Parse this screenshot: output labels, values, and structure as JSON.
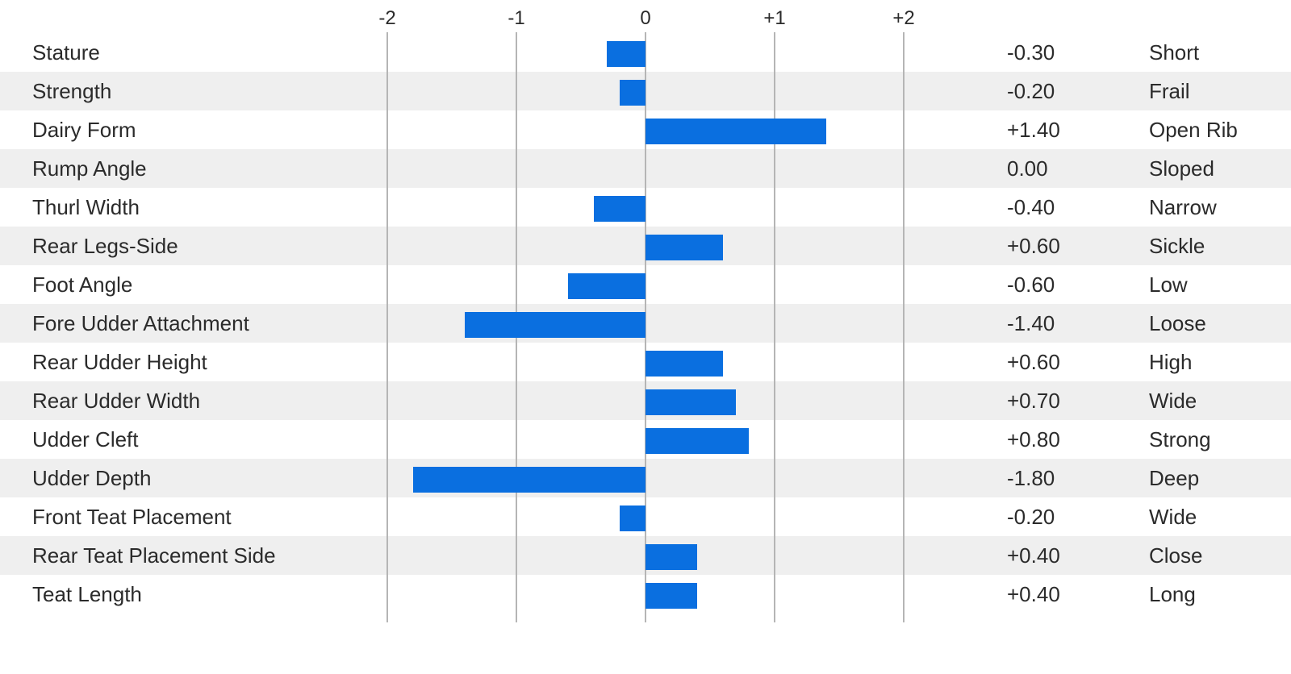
{
  "chart_data": {
    "type": "bar",
    "orientation": "horizontal",
    "xlim": [
      -2,
      2
    ],
    "ticks": [
      {
        "value": -2,
        "label": "-2"
      },
      {
        "value": -1,
        "label": "-1"
      },
      {
        "value": 0,
        "label": "0"
      },
      {
        "value": 1,
        "label": "+1"
      },
      {
        "value": 2,
        "label": "+2"
      }
    ],
    "grid": true,
    "bar_color": "#0a6fe0",
    "stripe_color": "#efefef",
    "rows": [
      {
        "trait": "Stature",
        "value": -0.3,
        "value_label": "-0.30",
        "descriptor": "Short"
      },
      {
        "trait": "Strength",
        "value": -0.2,
        "value_label": "-0.20",
        "descriptor": "Frail"
      },
      {
        "trait": "Dairy Form",
        "value": 1.4,
        "value_label": "+1.40",
        "descriptor": "Open Rib"
      },
      {
        "trait": "Rump Angle",
        "value": 0.0,
        "value_label": "0.00",
        "descriptor": "Sloped"
      },
      {
        "trait": "Thurl Width",
        "value": -0.4,
        "value_label": "-0.40",
        "descriptor": "Narrow"
      },
      {
        "trait": "Rear Legs-Side",
        "value": 0.6,
        "value_label": "+0.60",
        "descriptor": "Sickle"
      },
      {
        "trait": "Foot Angle",
        "value": -0.6,
        "value_label": "-0.60",
        "descriptor": "Low"
      },
      {
        "trait": "Fore Udder Attachment",
        "value": -1.4,
        "value_label": "-1.40",
        "descriptor": "Loose"
      },
      {
        "trait": "Rear Udder Height",
        "value": 0.6,
        "value_label": "+0.60",
        "descriptor": "High"
      },
      {
        "trait": "Rear Udder Width",
        "value": 0.7,
        "value_label": "+0.70",
        "descriptor": "Wide"
      },
      {
        "trait": "Udder Cleft",
        "value": 0.8,
        "value_label": "+0.80",
        "descriptor": "Strong"
      },
      {
        "trait": "Udder Depth",
        "value": -1.8,
        "value_label": "-1.80",
        "descriptor": "Deep"
      },
      {
        "trait": "Front Teat Placement",
        "value": -0.2,
        "value_label": "-0.20",
        "descriptor": "Wide"
      },
      {
        "trait": "Rear Teat Placement Side",
        "value": 0.4,
        "value_label": "+0.40",
        "descriptor": "Close"
      },
      {
        "trait": "Teat Length",
        "value": 0.4,
        "value_label": "+0.40",
        "descriptor": "Long"
      }
    ]
  }
}
